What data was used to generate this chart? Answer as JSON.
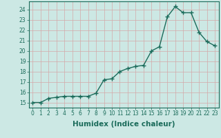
{
  "x": [
    0,
    1,
    2,
    3,
    4,
    5,
    6,
    7,
    8,
    9,
    10,
    11,
    12,
    13,
    14,
    15,
    16,
    17,
    18,
    19,
    20,
    21,
    22,
    23
  ],
  "y": [
    15.0,
    15.0,
    15.4,
    15.5,
    15.6,
    15.6,
    15.6,
    15.6,
    15.9,
    17.2,
    17.3,
    18.0,
    18.3,
    18.5,
    18.6,
    20.0,
    20.4,
    23.3,
    24.3,
    23.7,
    23.7,
    21.8,
    20.9,
    20.5
  ],
  "line_color": "#1a6b5a",
  "marker": "+",
  "marker_size": 4,
  "marker_lw": 1.0,
  "background_color": "#cce8e4",
  "grid_color": "#b8d8d2",
  "xlabel": "Humidex (Indice chaleur)",
  "xlim": [
    -0.5,
    23.5
  ],
  "ylim": [
    14.5,
    24.8
  ],
  "yticks": [
    15,
    16,
    17,
    18,
    19,
    20,
    21,
    22,
    23,
    24
  ],
  "xticks": [
    0,
    1,
    2,
    3,
    4,
    5,
    6,
    7,
    8,
    9,
    10,
    11,
    12,
    13,
    14,
    15,
    16,
    17,
    18,
    19,
    20,
    21,
    22,
    23
  ],
  "tick_fontsize": 5.5,
  "xlabel_fontsize": 7.5,
  "line_width": 1.0,
  "linestyle": "-"
}
